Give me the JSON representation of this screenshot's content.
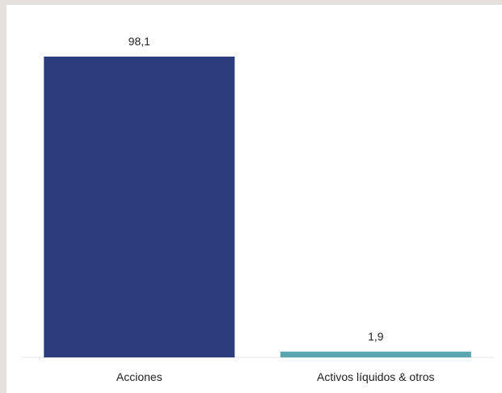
{
  "chart_data": {
    "type": "bar",
    "categories": [
      "Acciones",
      "Activos líquidos & otros"
    ],
    "values": [
      98.1,
      1.9
    ],
    "data_labels": [
      "98,1",
      "1,9"
    ],
    "colors": [
      "#2e3d7e",
      "#5aa5b0"
    ],
    "ylim": [
      0,
      100
    ],
    "grid": false,
    "legend": "none",
    "title": "",
    "xlabel": "",
    "ylabel": ""
  }
}
